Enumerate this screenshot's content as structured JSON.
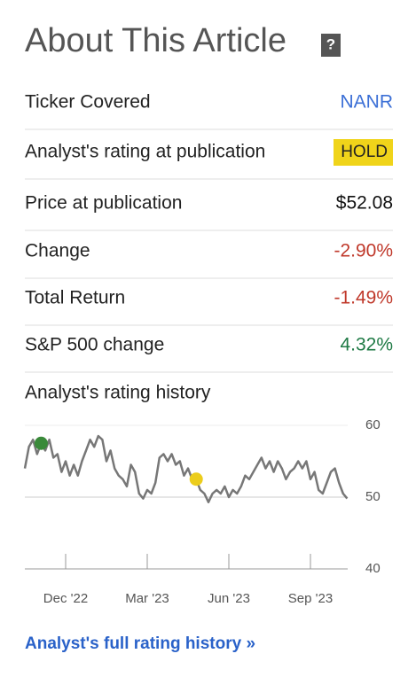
{
  "header": {
    "title": "About This Article",
    "help": "?"
  },
  "rows": [
    {
      "label": "Ticker Covered",
      "value": "NANR",
      "color": "#3b6fd6"
    },
    {
      "label": "Analyst's rating at publication",
      "value": "HOLD",
      "color": "#222222",
      "highlight": "#f0d41a"
    },
    {
      "label": "Price at publication",
      "value": "$52.08",
      "color": "#111111"
    },
    {
      "label": "Change",
      "value": "-2.90%",
      "color": "#c0392b"
    },
    {
      "label": "Total Return",
      "value": "-1.49%",
      "color": "#c0392b"
    },
    {
      "label": "S&P 500 change",
      "value": "4.32%",
      "color": "#1f7a45"
    }
  ],
  "chart_data": {
    "type": "line",
    "title": "Analyst's rating history",
    "categories": [
      null,
      null,
      null,
      null,
      null,
      null,
      null,
      null,
      null,
      null,
      "Dec '22",
      null,
      null,
      null,
      null,
      null,
      null,
      null,
      null,
      null,
      null,
      null,
      null,
      null,
      null,
      null,
      null,
      null,
      null,
      null,
      "Mar '23",
      null,
      null,
      null,
      null,
      null,
      null,
      null,
      null,
      null,
      null,
      null,
      null,
      null,
      null,
      null,
      null,
      null,
      null,
      null,
      "Jun '23",
      null,
      null,
      null,
      null,
      null,
      null,
      null,
      null,
      null,
      null,
      null,
      null,
      null,
      null,
      null,
      null,
      null,
      null,
      null,
      "Sep '23",
      null,
      null,
      null,
      null,
      null,
      null,
      null,
      null,
      null
    ],
    "values": [
      54,
      57,
      58,
      56,
      57.5,
      56.5,
      58,
      55.5,
      56,
      53.5,
      55,
      53,
      54.5,
      53,
      55,
      56.5,
      58,
      57,
      58.5,
      58,
      55,
      56.5,
      54,
      53,
      52.5,
      51.5,
      54.5,
      53.5,
      50.5,
      49.8,
      51,
      50.5,
      52,
      55.5,
      56,
      55,
      56,
      54.5,
      55,
      53,
      54,
      52.5,
      52.5,
      51,
      50.5,
      49.3,
      50.5,
      51,
      50.5,
      51.5,
      50,
      51,
      50.5,
      51.5,
      53,
      52.5,
      53.5,
      54.5,
      55.5,
      54,
      55,
      53.5,
      55,
      54,
      52.5,
      53.5,
      54,
      55,
      54,
      55,
      52.5,
      53.5,
      51,
      50.5,
      52,
      53.5,
      54,
      52,
      50.5,
      49.8
    ],
    "color": "#777777",
    "rating_points": [
      {
        "x": 4,
        "y": 57.5,
        "color": "#3a8a3a"
      },
      {
        "x": 42,
        "y": 52.5,
        "color": "#eccd1c"
      }
    ],
    "ylim": [
      40,
      60
    ],
    "yticks": [
      40,
      50,
      60
    ],
    "grid": true
  },
  "link": "Analyst's full rating history »"
}
